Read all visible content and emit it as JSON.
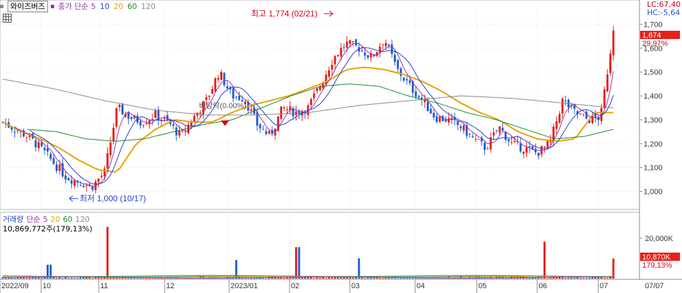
{
  "header": {
    "stock_name": "와이즈버즈",
    "ma_label": "종가 단순",
    "ma_periods": [
      "5",
      "10",
      "20",
      "60",
      "120"
    ],
    "ma_colors": [
      "#9b2fae",
      "#1f3fd0",
      "#e6a100",
      "#1a8a2a",
      "#888888"
    ]
  },
  "corner": {
    "lc": "LC:67,40",
    "hc": "HC:-5,64"
  },
  "annotations": {
    "high": "최고 1,774 (02/21)",
    "low": "최저 1,000 (10/17)",
    "event": "배당락(0.00%)"
  },
  "price_axis": {
    "ticks": [
      "1,700",
      "1,600",
      "1,500",
      "1,400",
      "1,300",
      "1,200",
      "1,100",
      "1,000"
    ],
    "last_price": "1,674",
    "last_pct": "29,97%"
  },
  "volume_panel": {
    "label": "거래량",
    "ma_label": "단순",
    "ma_periods": [
      "5",
      "20",
      "60",
      "120"
    ],
    "ma_colors": [
      "#9b2fae",
      "#e6a100",
      "#1a8a2a",
      "#888888"
    ],
    "sub_label": "10,869,772주(179,13%)",
    "axis_tick": "20,000K",
    "last_value": "10,870K",
    "last_pct": "179,13%"
  },
  "x_axis": {
    "labels": [
      "2022/09",
      "10",
      "11",
      "12",
      "2023/01",
      "02",
      "03",
      "04",
      "05",
      "06",
      "07"
    ],
    "right_label": "07/07"
  },
  "colors": {
    "up": "#e8201a",
    "down": "#1f5fd0"
  },
  "chart_data": [
    {
      "type": "candlestick",
      "title": "와이즈버즈",
      "ylim": [
        930,
        1790
      ],
      "x": [
        "2022/09",
        "10",
        "11",
        "12",
        "2023/01",
        "02",
        "03",
        "04",
        "05",
        "06",
        "07"
      ],
      "close_series_approx": [
        1290,
        1260,
        1230,
        1180,
        1120,
        1060,
        1040,
        1020,
        1080,
        1350,
        1310,
        1290,
        1320,
        1290,
        1230,
        1310,
        1380,
        1500,
        1400,
        1390,
        1280,
        1230,
        1350,
        1330,
        1350,
        1450,
        1560,
        1620,
        1600,
        1560,
        1640,
        1510,
        1440,
        1380,
        1310,
        1300,
        1270,
        1220,
        1180,
        1270,
        1200,
        1180,
        1160,
        1200,
        1380,
        1330,
        1300,
        1310,
        1674
      ],
      "moving_averages_approx": {
        "20": [
          1290,
          1250,
          1220,
          1180,
          1130,
          1090,
          1080,
          1200,
          1260,
          1300,
          1290,
          1290,
          1330,
          1360,
          1380,
          1400,
          1430,
          1460,
          1510,
          1520,
          1510,
          1490,
          1460,
          1420,
          1370,
          1330,
          1300,
          1250,
          1220,
          1210,
          1220,
          1330,
          1330
        ],
        "60": [
          1260,
          1250,
          1220,
          1210,
          1220,
          1250,
          1280,
          1300,
          1350,
          1400,
          1440,
          1450,
          1440,
          1400,
          1370,
          1330,
          1300,
          1260,
          1220,
          1230,
          1260
        ],
        "120": [
          1470,
          1430,
          1380,
          1340,
          1320,
          1320,
          1330,
          1360,
          1380,
          1400,
          1390,
          1370,
          1350
        ]
      },
      "annotations": [
        "최고 1,774 (02/21)",
        "최저 1,000 (10/17)",
        "배당락(0.00%)"
      ]
    },
    {
      "type": "bar",
      "title": "거래량",
      "ylabel": "",
      "approx_peaks": [
        {
          "x": "10",
          "value": 7500
        },
        {
          "x": "11",
          "value": 28000
        },
        {
          "x": "2023/01",
          "value": 10000
        },
        {
          "x": "02",
          "value": 17000
        },
        {
          "x": "03",
          "value": 11000
        },
        {
          "x": "06",
          "value": 20000
        },
        {
          "x": "07",
          "value": 10870
        }
      ]
    }
  ]
}
